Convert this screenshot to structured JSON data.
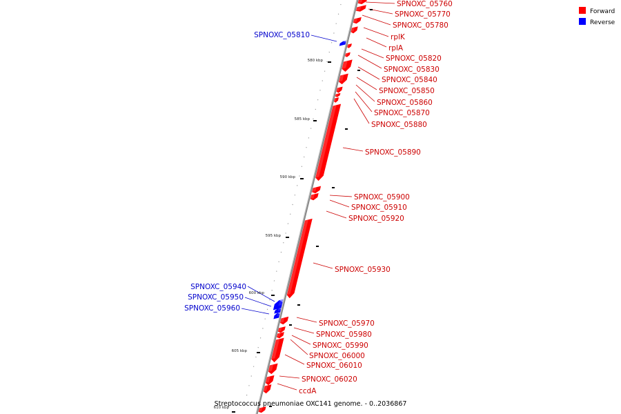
{
  "title": "Streptococcus pneumoniae OXC141 genome. - 0..2036867",
  "colors": {
    "forward": "#ff0000",
    "reverse": "#0000ff",
    "axis": "#888888"
  },
  "legend": [
    {
      "label": "Forward",
      "color": "#ff0000"
    },
    {
      "label": "Reverse",
      "color": "#0000ff"
    }
  ],
  "ticks": [
    "580 kbp",
    "585 kbp",
    "590 kbp",
    "595 kbp",
    "600 kbp",
    "605 kbp",
    "610 kbp"
  ],
  "forward_genes": [
    "SPNOXC_05760",
    "SPNOXC_05770",
    "SPNOXC_05780",
    "rplK",
    "rplA",
    "SPNOXC_05820",
    "SPNOXC_05830",
    "SPNOXC_05840",
    "SPNOXC_05850",
    "SPNOXC_05860",
    "SPNOXC_05870",
    "SPNOXC_05880",
    "SPNOXC_05890",
    "SPNOXC_05900",
    "SPNOXC_05910",
    "SPNOXC_05920",
    "SPNOXC_05930",
    "SPNOXC_05970",
    "SPNOXC_05980",
    "SPNOXC_05990",
    "SPNOXC_06000",
    "SPNOXC_06010",
    "SPNOXC_06020",
    "ccdA"
  ],
  "reverse_genes": [
    "SPNOXC_05810",
    "SPNOXC_05940",
    "SPNOXC_05950",
    "SPNOXC_05960"
  ]
}
